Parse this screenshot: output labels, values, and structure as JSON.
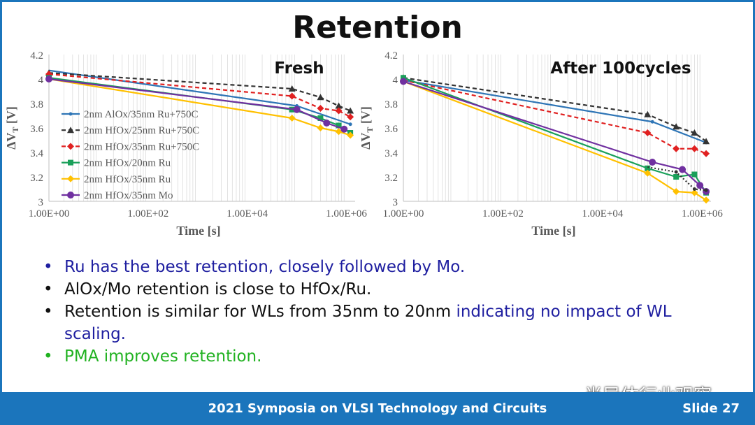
{
  "slide": {
    "title": "Retention",
    "footer": "2021 Symposia on VLSI Technology and Circuits",
    "slide_number": "Slide 27",
    "watermark": "半导体行业观察",
    "colors": {
      "accent": "#1b75bc",
      "blue_text": "#1f1fa0",
      "green_text": "#21b221"
    }
  },
  "bullets": [
    {
      "segments": [
        {
          "text": "Ru has the best retention, closely followed by Mo.",
          "color": "#1f1fa0"
        }
      ]
    },
    {
      "segments": [
        {
          "text": "AlOx/Mo retention is close to HfOx/Ru.",
          "color": "#111111"
        }
      ]
    },
    {
      "segments": [
        {
          "text": "Retention is similar for WLs from 35nm to 20nm ",
          "color": "#111111"
        },
        {
          "text": "indicating no impact of WL scaling.",
          "color": "#1f1fa0"
        }
      ]
    },
    {
      "segments": [
        {
          "text": "PMA improves retention.",
          "color": "#21b221"
        }
      ]
    }
  ],
  "chart_data": [
    {
      "type": "line",
      "title": "Fresh",
      "xlabel": "Time [s]",
      "ylabel": "ΔV_T [V]",
      "xscale": "log",
      "xlim": [
        1,
        1500000
      ],
      "ylim": [
        3,
        4.2
      ],
      "x_ticks": [
        1,
        100,
        10000,
        1000000
      ],
      "x_tick_labels": [
        "1.00E+00",
        "1.00E+02",
        "1.00E+04",
        "1.00E+06"
      ],
      "y_ticks": [
        3,
        3.2,
        3.4,
        3.6,
        3.8,
        4,
        4.2
      ],
      "y_tick_labels": [
        "3",
        "3.2",
        "3.4",
        "3.6",
        "3.8",
        "4",
        "4.2"
      ],
      "grid": "vertical minor",
      "legend_position": "left",
      "series": [
        {
          "name": "2nm AlOx/35nm Ru+750C",
          "color": "#2e75b6",
          "dash": "solid",
          "marker": "dot",
          "x": [
            1,
            100000,
            1200000
          ],
          "y": [
            4.07,
            3.78,
            3.63
          ]
        },
        {
          "name": "2nm HfOx/25nm Ru+750C",
          "color": "#333333",
          "dash": "dash",
          "marker": "triangle",
          "x": [
            1,
            80000,
            300000,
            700000,
            1200000
          ],
          "y": [
            4.05,
            3.92,
            3.85,
            3.78,
            3.74
          ]
        },
        {
          "name": "2nm HfOx/35nm Ru+750C",
          "color": "#e02020",
          "dash": "dash",
          "marker": "diamond",
          "x": [
            1,
            80000,
            300000,
            700000,
            1200000
          ],
          "y": [
            4.04,
            3.86,
            3.76,
            3.74,
            3.69
          ]
        },
        {
          "name": "2nm HfOx/20nm Ru",
          "color": "#1aa05a",
          "dash": "solid",
          "marker": "square",
          "x": [
            1,
            80000,
            300000,
            700000,
            1200000
          ],
          "y": [
            4.01,
            3.75,
            3.68,
            3.62,
            3.56
          ]
        },
        {
          "name": "2nm HfOx/35nm Ru",
          "color": "#ffc000",
          "dash": "solid",
          "marker": "diamond",
          "x": [
            1,
            80000,
            300000,
            700000,
            1200000
          ],
          "y": [
            4.0,
            3.68,
            3.6,
            3.57,
            3.54
          ]
        },
        {
          "name": "2nm HfOx/35nm Mo",
          "color": "#7030a0",
          "dash": "solid",
          "marker": "circle",
          "x": [
            1,
            100000,
            400000,
            900000
          ],
          "y": [
            4.0,
            3.75,
            3.64,
            3.59
          ]
        }
      ]
    },
    {
      "type": "line",
      "title": "After 100cycles",
      "xlabel": "Time [s]",
      "ylabel": "ΔV_T [V]",
      "xscale": "log",
      "xlim": [
        1,
        1500000
      ],
      "ylim": [
        3,
        4.2
      ],
      "x_ticks": [
        1,
        100,
        10000,
        1000000
      ],
      "x_tick_labels": [
        "1.00E+00",
        "1.00E+02",
        "1.00E+04",
        "1.00E+06"
      ],
      "y_ticks": [
        3,
        3.2,
        3.4,
        3.6,
        3.8,
        4,
        4.2
      ],
      "y_tick_labels": [
        "3",
        "3.2",
        "3.4",
        "3.6",
        "3.8",
        "4",
        "4.2"
      ],
      "grid": "vertical minor",
      "series": [
        {
          "color": "#2e75b6",
          "dash": "solid",
          "marker": "dot",
          "x": [
            1,
            100000,
            1200000
          ],
          "y": [
            3.99,
            3.65,
            3.48
          ]
        },
        {
          "color": "#333333",
          "dash": "dash",
          "marker": "triangle",
          "x": [
            1,
            80000,
            300000,
            700000,
            1200000
          ],
          "y": [
            4.01,
            3.71,
            3.61,
            3.56,
            3.49
          ]
        },
        {
          "color": "#e02020",
          "dash": "dash",
          "marker": "diamond",
          "x": [
            1,
            80000,
            300000,
            700000,
            1200000
          ],
          "y": [
            3.99,
            3.56,
            3.43,
            3.43,
            3.39
          ]
        },
        {
          "color": "#1aa05a",
          "dash": "solid",
          "marker": "square",
          "x": [
            1,
            80000,
            300000,
            700000,
            1200000
          ],
          "y": [
            4.01,
            3.27,
            3.2,
            3.22,
            3.07
          ]
        },
        {
          "color": "#ffc000",
          "dash": "solid",
          "marker": "diamond",
          "x": [
            1,
            80000,
            300000,
            700000,
            1200000
          ],
          "y": [
            3.98,
            3.23,
            3.08,
            3.07,
            3.01
          ]
        },
        {
          "color": "#7030a0",
          "dash": "solid",
          "marker": "circle",
          "x": [
            1,
            100000,
            400000,
            900000,
            1200000
          ],
          "y": [
            3.98,
            3.32,
            3.26,
            3.13,
            3.08
          ]
        },
        {
          "color": "#333333",
          "dash": "dot",
          "marker": "dot",
          "x": [
            80000,
            300000,
            700000,
            1200000
          ],
          "y": [
            3.28,
            3.24,
            3.1,
            3.09
          ]
        }
      ]
    }
  ]
}
